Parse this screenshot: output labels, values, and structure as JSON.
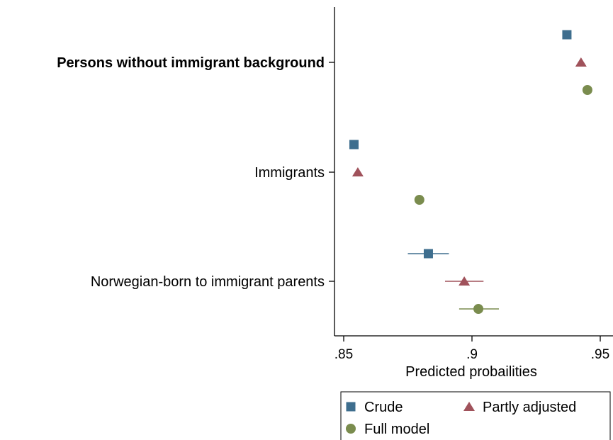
{
  "chart_data": {
    "type": "scatter",
    "orientation": "horizontal-dot-plot",
    "categories": [
      "Persons without immigrant background",
      "Immigrants",
      "Norwegian-born to immigrant parents"
    ],
    "category_emphasis": [
      true,
      false,
      false
    ],
    "xlabel": "Predicted probailities",
    "ylabel": "",
    "xlim": [
      0.85,
      0.95
    ],
    "x_ticks": [
      0.85,
      0.9,
      0.95
    ],
    "x_tick_labels": [
      ".85",
      ".9",
      ".95"
    ],
    "grid": false,
    "legend_position": "bottom",
    "series": [
      {
        "name": "Crude",
        "marker": "square",
        "color": "#3e6e8e",
        "values": [
          0.937,
          0.854,
          0.883
        ],
        "ci_low": [
          0.937,
          0.8535,
          0.875
        ],
        "ci_high": [
          0.937,
          0.8545,
          0.891
        ]
      },
      {
        "name": "Partly adjusted",
        "marker": "triangle",
        "color": "#a0525b",
        "values": [
          0.9425,
          0.8555,
          0.897
        ],
        "ci_low": [
          0.9425,
          0.8545,
          0.8895
        ],
        "ci_high": [
          0.9425,
          0.8565,
          0.9045
        ]
      },
      {
        "name": "Full model",
        "marker": "circle",
        "color": "#7a8c4e",
        "values": [
          0.945,
          0.8795,
          0.9025
        ],
        "ci_low": [
          0.945,
          0.8785,
          0.895
        ],
        "ci_high": [
          0.945,
          0.8805,
          0.9105
        ]
      }
    ]
  }
}
